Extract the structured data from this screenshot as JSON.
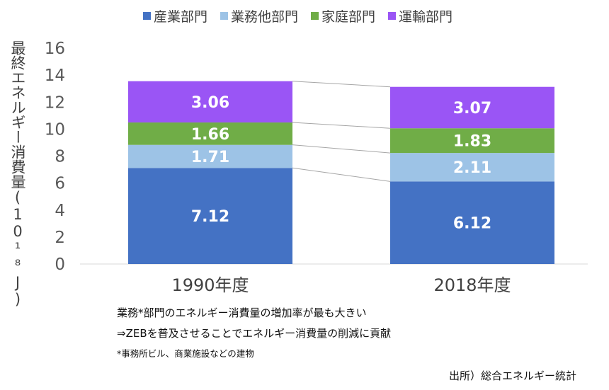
{
  "chart_data": {
    "type": "bar",
    "stacked": true,
    "categories": [
      "1990年度",
      "2018年度"
    ],
    "series": [
      {
        "name": "産業部門",
        "values": [
          7.12,
          6.12
        ],
        "color": "#4472c4"
      },
      {
        "name": "業務他部門",
        "values": [
          1.71,
          2.11
        ],
        "color": "#9dc3e6"
      },
      {
        "name": "家庭部門",
        "values": [
          1.66,
          1.83
        ],
        "color": "#70ad47"
      },
      {
        "name": "運輸部門",
        "values": [
          3.06,
          3.07
        ],
        "color": "#9a55f5"
      }
    ],
    "ylabel": "最終エネルギー消費量(10¹⁸J)",
    "ylim": [
      0,
      16
    ],
    "yticks": [
      0,
      2,
      4,
      6,
      8,
      10,
      12,
      14,
      16
    ],
    "legend_position": "top",
    "grid": false
  },
  "notes": {
    "line1": "業務*部門のエネルギー消費量の増加率が最も大きい",
    "line2": "⇒ZEBを普及させることでエネルギー消費量の削減に貢献",
    "footnote": "*事務所ビル、商業施設などの建物"
  },
  "source": "出所）総合エネルギー統計"
}
